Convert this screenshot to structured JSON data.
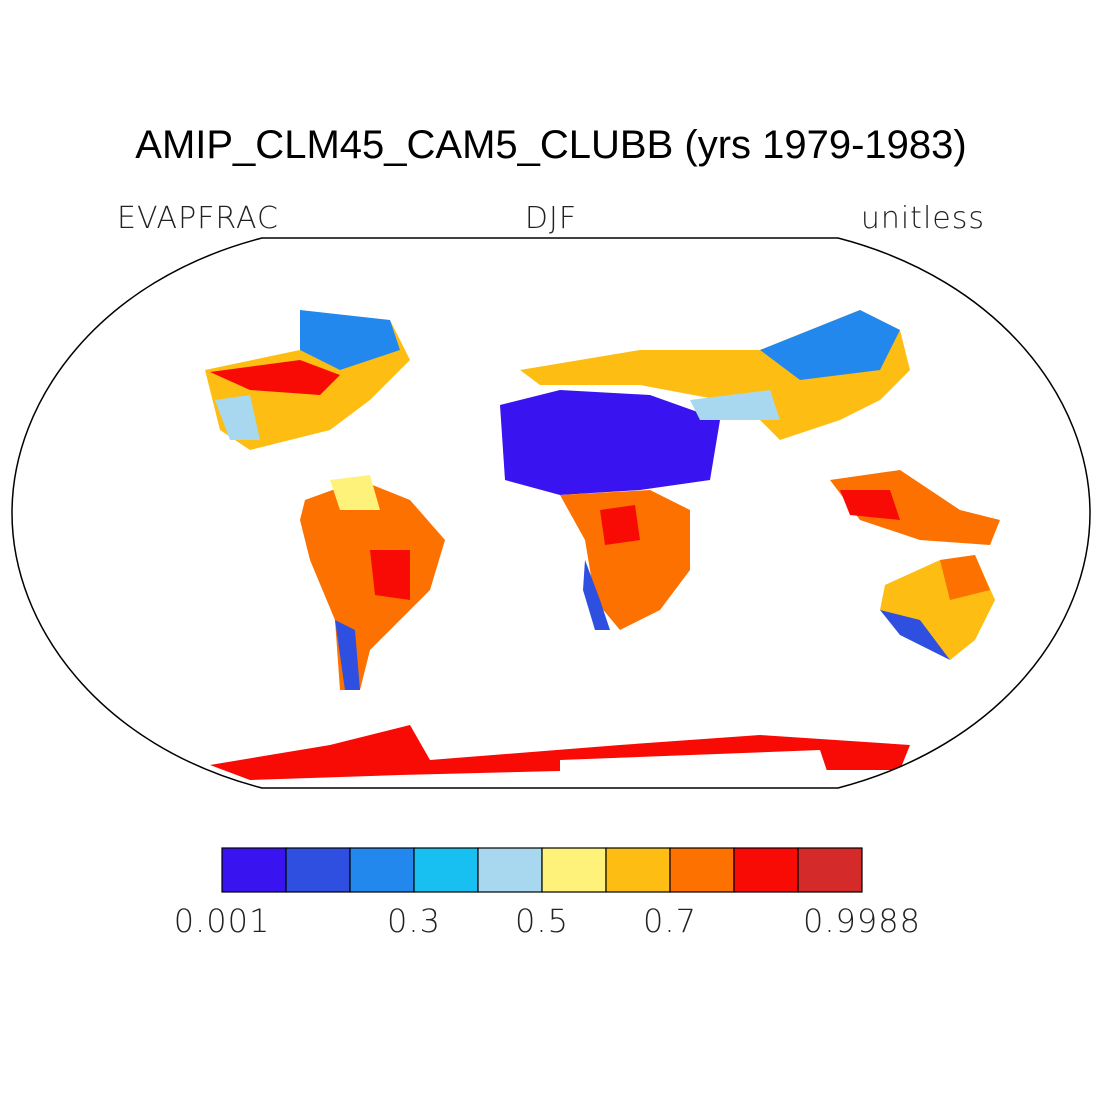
{
  "title": "AMIP_CLM45_CAM5_CLUBB (yrs 1979-1983)",
  "left_label": "EVAPFRAC",
  "center_label": "DJF",
  "right_label": "unitless",
  "colorbar": {
    "colors": [
      "#3a14f0",
      "#2e4fe0",
      "#2288ee",
      "#18c0f2",
      "#a8d8f0",
      "#fff27a",
      "#fdbd12",
      "#fc7100",
      "#f80a05",
      "#d42a2a"
    ],
    "boundary_labels": [
      "0.001",
      null,
      null,
      "0.3",
      null,
      "0.5",
      null,
      "0.7",
      null,
      null,
      "0.9988"
    ]
  }
}
